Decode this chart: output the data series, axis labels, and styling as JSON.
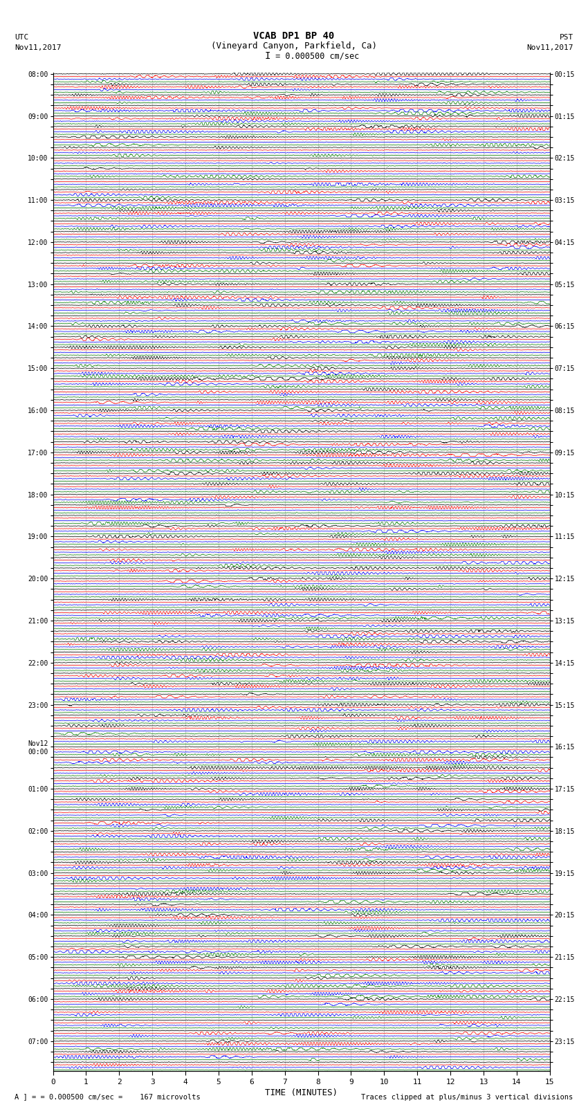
{
  "title_line1": "VCAB DP1 BP 40",
  "title_line2": "(Vineyard Canyon, Parkfield, Ca)",
  "scale_label": "I = 0.000500 cm/sec",
  "utc_label1": "UTC",
  "utc_label2": "Nov11,2017",
  "pst_label1": "PST",
  "pst_label2": "Nov11,2017",
  "xlabel": "TIME (MINUTES)",
  "footer_left": "= 0.000500 cm/sec =    167 microvolts",
  "footer_right": "Traces clipped at plus/minus 3 vertical divisions",
  "footer_scale": "A",
  "left_times": [
    "08:00",
    "",
    "",
    "",
    "09:00",
    "",
    "",
    "",
    "10:00",
    "",
    "",
    "",
    "11:00",
    "",
    "",
    "",
    "12:00",
    "",
    "",
    "",
    "13:00",
    "",
    "",
    "",
    "14:00",
    "",
    "",
    "",
    "15:00",
    "",
    "",
    "",
    "16:00",
    "",
    "",
    "",
    "17:00",
    "",
    "",
    "",
    "18:00",
    "",
    "",
    "",
    "19:00",
    "",
    "",
    "",
    "20:00",
    "",
    "",
    "",
    "21:00",
    "",
    "",
    "",
    "22:00",
    "",
    "",
    "",
    "23:00",
    "",
    "",
    "",
    "Nov12\n00:00",
    "",
    "",
    "",
    "01:00",
    "",
    "",
    "",
    "02:00",
    "",
    "",
    "",
    "03:00",
    "",
    "",
    "",
    "04:00",
    "",
    "",
    "",
    "05:00",
    "",
    "",
    "",
    "06:00",
    "",
    "",
    "",
    "07:00",
    "",
    ""
  ],
  "right_times": [
    "00:15",
    "",
    "",
    "",
    "01:15",
    "",
    "",
    "",
    "02:15",
    "",
    "",
    "",
    "03:15",
    "",
    "",
    "",
    "04:15",
    "",
    "",
    "",
    "05:15",
    "",
    "",
    "",
    "06:15",
    "",
    "",
    "",
    "07:15",
    "",
    "",
    "",
    "08:15",
    "",
    "",
    "",
    "09:15",
    "",
    "",
    "",
    "10:15",
    "",
    "",
    "",
    "11:15",
    "",
    "",
    "",
    "12:15",
    "",
    "",
    "",
    "13:15",
    "",
    "",
    "",
    "14:15",
    "",
    "",
    "",
    "15:15",
    "",
    "",
    "",
    "16:15",
    "",
    "",
    "",
    "17:15",
    "",
    "",
    "",
    "18:15",
    "",
    "",
    "",
    "19:15",
    "",
    "",
    "",
    "20:15",
    "",
    "",
    "",
    "21:15",
    "",
    "",
    "",
    "22:15",
    "",
    "",
    "",
    "23:15",
    "",
    ""
  ],
  "n_rows": 95,
  "colors": [
    "black",
    "red",
    "blue",
    "green"
  ],
  "bg_color": "white",
  "vline_color": "#888888",
  "hline_color": "#888888"
}
